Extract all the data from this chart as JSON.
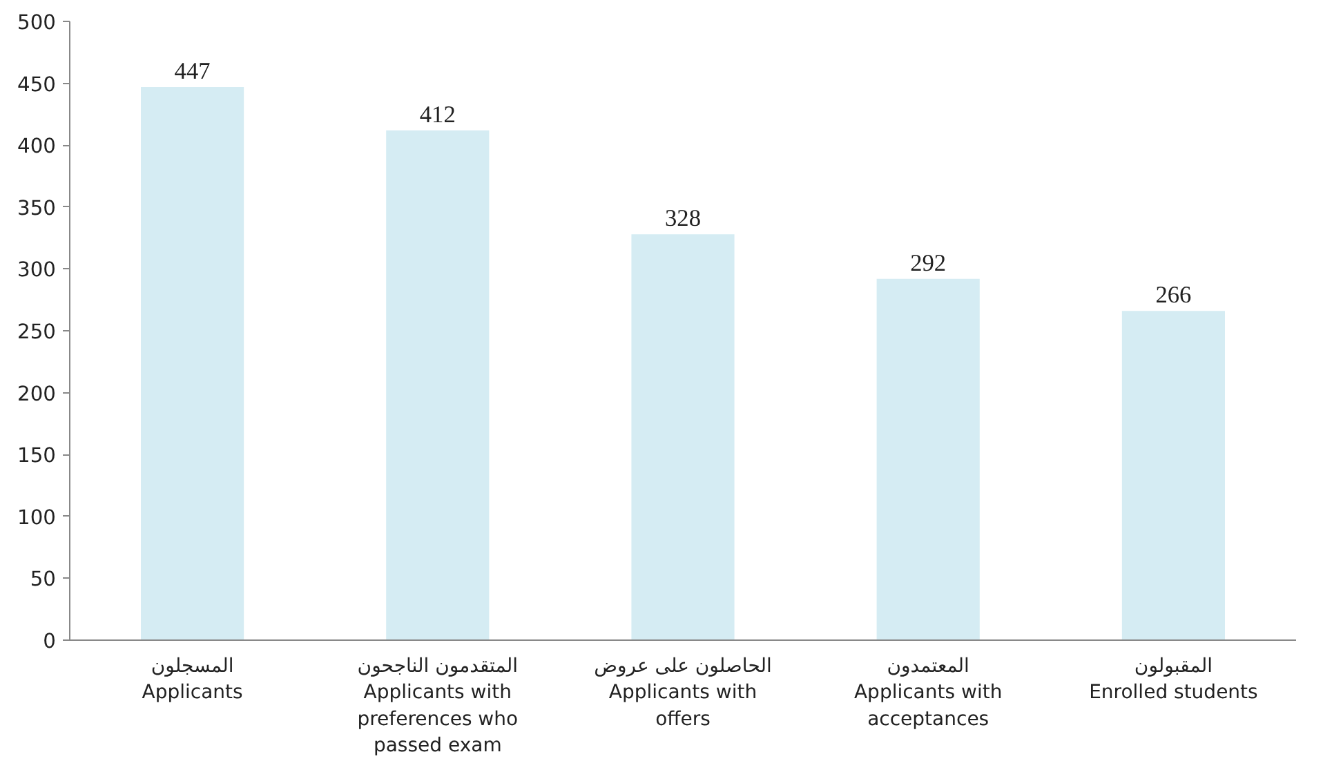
{
  "chart_data": {
    "type": "bar",
    "categories": [
      "المسجلون\nApplicants",
      "المتقدمون الناجحون\nApplicants with\npreferences who\npassed exam",
      "الحاصلون على عروض\nApplicants with\noffers",
      "المعتمدون\nApplicants with\nacceptances",
      "المقبولون\nEnrolled students"
    ],
    "values": [
      447,
      412,
      328,
      292,
      266
    ],
    "color": "#d5ecf3",
    "ylim": [
      0,
      500
    ],
    "yticks": [
      0,
      50,
      100,
      150,
      200,
      250,
      300,
      350,
      400,
      450,
      500
    ],
    "grid": false,
    "data_labels": true
  }
}
